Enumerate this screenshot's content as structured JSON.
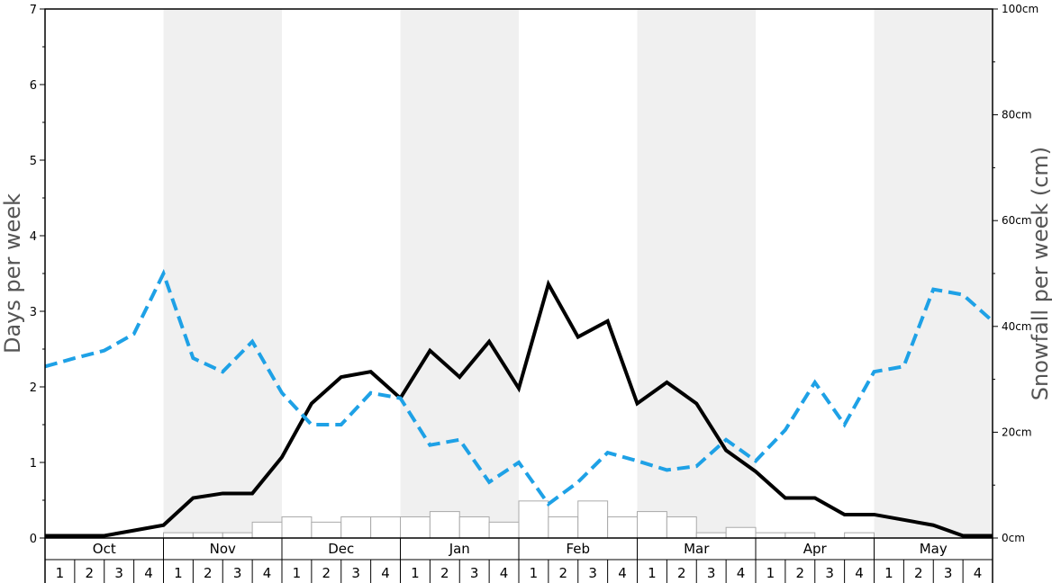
{
  "chart_data": {
    "type": "line",
    "title": "",
    "xlabel": "",
    "ylabel": "Days per week",
    "y2label": "Snowfall per week (cm)",
    "ylim": [
      0,
      7
    ],
    "y2lim": [
      0,
      100
    ],
    "yticks": [
      "0",
      "1",
      "2",
      "3",
      "4",
      "5",
      "6",
      "7"
    ],
    "y2ticks": [
      "0cm",
      "20cm",
      "40cm",
      "60cm",
      "80cm",
      "100cm"
    ],
    "months": [
      "Oct",
      "Nov",
      "Dec",
      "Jan",
      "Feb",
      "Mar",
      "Apr",
      "May"
    ],
    "weeks": [
      "1",
      "2",
      "3",
      "4"
    ],
    "colors": {
      "solid": "#000000",
      "dashed": "#1ea1e6",
      "bars_fill": "#ffffff",
      "bars_stroke": "#aaaaaa",
      "shade": "#f0f0f0"
    },
    "series": [
      {
        "style": "solid-black-line",
        "axis": "left",
        "values": [
          0.03,
          0.03,
          0.03,
          0.1,
          0.17,
          0.53,
          0.59,
          0.59,
          1.07,
          1.78,
          2.13,
          2.2,
          1.85,
          2.48,
          2.13,
          2.6,
          1.98,
          3.36,
          2.66,
          2.87,
          1.78,
          2.06,
          1.78,
          1.16,
          0.88,
          0.53,
          0.53,
          0.31,
          0.31,
          0.24,
          0.17,
          0.03,
          0.03
        ]
      },
      {
        "style": "dashed-blue-line",
        "axis": "left",
        "values": [
          2.27,
          2.38,
          2.48,
          2.7,
          3.5,
          2.38,
          2.2,
          2.6,
          1.92,
          1.5,
          1.5,
          1.92,
          1.85,
          1.23,
          1.3,
          0.74,
          1.0,
          0.45,
          0.74,
          1.13,
          1.02,
          0.9,
          0.95,
          1.3,
          1.02,
          1.43,
          2.06,
          1.5,
          2.2,
          2.27,
          3.29,
          3.22,
          2.87
        ]
      },
      {
        "style": "snowfall-bars",
        "axis": "right",
        "values": [
          0,
          0,
          0,
          0,
          1,
          1,
          1,
          3,
          4,
          3,
          4,
          4,
          4,
          5,
          4,
          3,
          7,
          4,
          7,
          4,
          5,
          4,
          1,
          2,
          1,
          1,
          0,
          1,
          0,
          0,
          0,
          0
        ]
      }
    ]
  }
}
